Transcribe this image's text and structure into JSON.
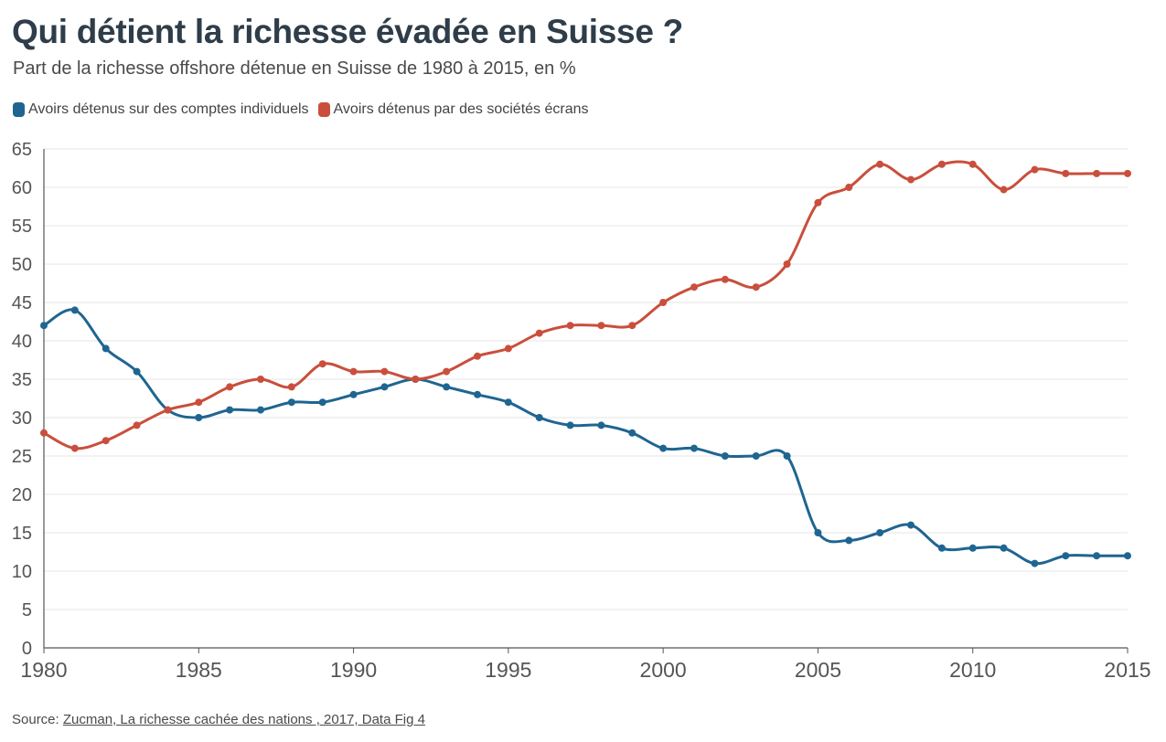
{
  "header": {
    "title": "Qui détient la richesse évadée en Suisse ?",
    "subtitle": "Part de la richesse offshore détenue en Suisse de 1980 à 2015, en %"
  },
  "legend": {
    "items": [
      {
        "label": "Avoirs détenus sur des comptes individuels",
        "color": "#1f6591"
      },
      {
        "label": "Avoirs détenus par des sociétés écrans",
        "color": "#c94f3c"
      }
    ]
  },
  "footer": {
    "source_prefix": "Source: ",
    "source_link": "Zucman, La richesse cachée des nations , 2017, Data Fig 4"
  },
  "chart_data": {
    "type": "line",
    "title": "Qui détient la richesse évadée en Suisse ?",
    "subtitle": "Part de la richesse offshore détenue en Suisse de 1980 à 2015, en %",
    "x": [
      1980,
      1981,
      1982,
      1983,
      1984,
      1985,
      1986,
      1987,
      1988,
      1989,
      1990,
      1991,
      1992,
      1993,
      1994,
      1995,
      1996,
      1997,
      1998,
      1999,
      2000,
      2001,
      2002,
      2003,
      2004,
      2005,
      2006,
      2007,
      2008,
      2009,
      2010,
      2011,
      2012,
      2013,
      2014,
      2015
    ],
    "series": [
      {
        "name": "Avoirs détenus sur des comptes individuels",
        "color": "#1f6591",
        "values": [
          42,
          44,
          39,
          36,
          31,
          30,
          31,
          31,
          32,
          32,
          33,
          34,
          35,
          34,
          33,
          32,
          30,
          29,
          29,
          28,
          26,
          26,
          25,
          25,
          25,
          15,
          14,
          15,
          16,
          13,
          13,
          13,
          11,
          12,
          12,
          12
        ]
      },
      {
        "name": "Avoirs détenus par des sociétés écrans",
        "color": "#c94f3c",
        "values": [
          28,
          26,
          27,
          29,
          31,
          32,
          34,
          35,
          34,
          37,
          36,
          36,
          35,
          36,
          38,
          39,
          41,
          42,
          42,
          42,
          45,
          47,
          48,
          47,
          50,
          58,
          60,
          63,
          61,
          63,
          63,
          59.7,
          62.3,
          61.8,
          61.8,
          61.8
        ]
      }
    ],
    "xlim": [
      1980,
      2015
    ],
    "ylim": [
      0,
      65
    ],
    "x_ticks": [
      1980,
      1985,
      1990,
      1995,
      2000,
      2005,
      2010,
      2015
    ],
    "y_ticks": [
      0,
      5,
      10,
      15,
      20,
      25,
      30,
      35,
      40,
      45,
      50,
      55,
      60,
      65
    ],
    "xlabel": "",
    "ylabel": "",
    "grid": true,
    "legend_position": "top-left"
  }
}
